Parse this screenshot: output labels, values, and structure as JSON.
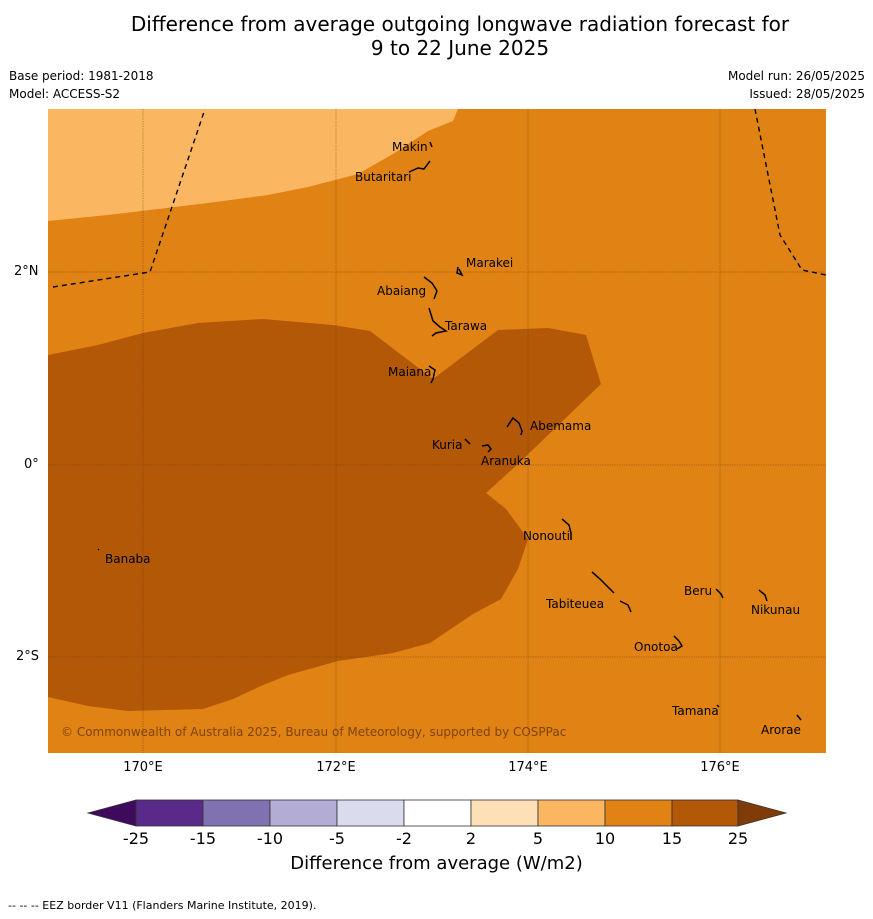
{
  "title_line1": "Difference from average outgoing longwave radiation forecast for",
  "title_line2": "9 to 22 June 2025",
  "base_period": "Base period: 1981-2018",
  "model": "Model: ACCESS-S2",
  "model_run": "Model run: 26/05/2025",
  "issued": "Issued: 28/05/2025",
  "copyright": "© Commonwealth of Australia 2025, Bureau of Meteorology, supported by COSPPac",
  "lat_labels": [
    "2°N",
    "0°",
    "2°S"
  ],
  "lon_labels": [
    "170°E",
    "172°E",
    "174°E",
    "176°E"
  ],
  "islands": {
    "makin": "Makin",
    "butaritari": "Butaritari",
    "marakei": "Marakei",
    "abaiang": "Abaiang",
    "tarawa": "Tarawa",
    "maiana": "Maiana",
    "abemama": "Abemama",
    "kuria": "Kuria",
    "aranuka": "Aranuka",
    "nonouti": "Nonouti",
    "banaba": "Banaba",
    "beru": "Beru",
    "nikunau": "Nikunau",
    "tabiteuea": "Tabiteuea",
    "onotoa": "Onotoa",
    "tamana": "Tamana",
    "arorae": "Arorae"
  },
  "colorbar": {
    "title": "Difference from average (W/m2)",
    "ticks": [
      "-25",
      "-15",
      "-10",
      "-5",
      "-2",
      "2",
      "5",
      "10",
      "15",
      "25"
    ],
    "colors": [
      "#3f0a5e",
      "#5a2a8a",
      "#8072b0",
      "#b3acd4",
      "#dadbec",
      "#ffffff",
      "#fee0b6",
      "#fbb661",
      "#e08214",
      "#b35806",
      "#7f3b08"
    ]
  },
  "map_colors": {
    "band_5_10": "#fbb661",
    "band_10_15": "#e08214",
    "band_15_25": "#b35806"
  },
  "footer": "--  --  -- EEZ border V11 (Flanders Marine Institute, 2019)."
}
